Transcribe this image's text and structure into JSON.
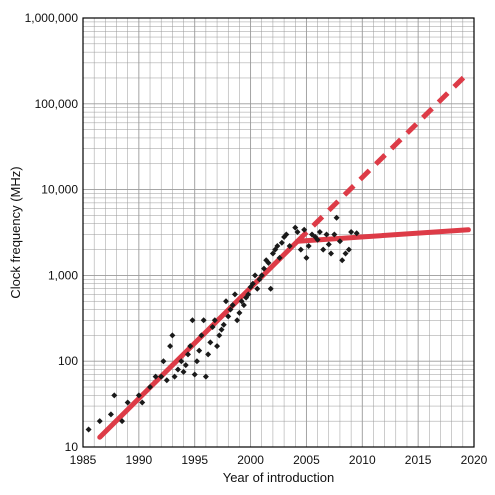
{
  "chart_data": {
    "type": "scatter",
    "xlabel": "Year of introduction",
    "ylabel": "Clock frequency (MHz)",
    "xlim": [
      1985,
      2020
    ],
    "ylim": [
      10,
      1000000
    ],
    "y_scale": "log",
    "grid": true,
    "x_ticks": [
      {
        "value": 1985,
        "label": "1985"
      },
      {
        "value": 1990,
        "label": "1990"
      },
      {
        "value": 1995,
        "label": "1995"
      },
      {
        "value": 2000,
        "label": "2000"
      },
      {
        "value": 2005,
        "label": "2005"
      },
      {
        "value": 2010,
        "label": "2010"
      },
      {
        "value": 2015,
        "label": "2015"
      },
      {
        "value": 2020,
        "label": "2020"
      }
    ],
    "y_ticks": [
      {
        "value": 10,
        "label": "10"
      },
      {
        "value": 100,
        "label": "100"
      },
      {
        "value": 1000,
        "label": "1,000"
      },
      {
        "value": 10000,
        "label": "10,000"
      },
      {
        "value": 100000,
        "label": "100,000"
      },
      {
        "value": 1000000,
        "label": "1,000,000"
      }
    ],
    "points": [
      [
        1985.5,
        16
      ],
      [
        1986.5,
        20
      ],
      [
        1987.5,
        24
      ],
      [
        1987.8,
        40
      ],
      [
        1988.5,
        20
      ],
      [
        1989,
        33
      ],
      [
        1990,
        40
      ],
      [
        1990.3,
        33
      ],
      [
        1991,
        50
      ],
      [
        1991.5,
        66
      ],
      [
        1992,
        66
      ],
      [
        1992.2,
        100
      ],
      [
        1992.5,
        60
      ],
      [
        1992.8,
        150
      ],
      [
        1993,
        200
      ],
      [
        1993.2,
        66
      ],
      [
        1993.5,
        80
      ],
      [
        1993.8,
        100
      ],
      [
        1994,
        75
      ],
      [
        1994.2,
        90
      ],
      [
        1994.4,
        120
      ],
      [
        1994.6,
        150
      ],
      [
        1994.8,
        300
      ],
      [
        1995,
        70
      ],
      [
        1995.2,
        100
      ],
      [
        1995.4,
        133
      ],
      [
        1995.6,
        200
      ],
      [
        1995.8,
        300
      ],
      [
        1996,
        66
      ],
      [
        1996.2,
        120
      ],
      [
        1996.4,
        166
      ],
      [
        1996.6,
        250
      ],
      [
        1996.8,
        300
      ],
      [
        1997,
        150
      ],
      [
        1997.2,
        200
      ],
      [
        1997.4,
        233
      ],
      [
        1997.6,
        266
      ],
      [
        1997.8,
        500
      ],
      [
        1998,
        333
      ],
      [
        1998.2,
        400
      ],
      [
        1998.4,
        450
      ],
      [
        1998.6,
        600
      ],
      [
        1998.8,
        300
      ],
      [
        1999,
        366
      ],
      [
        1999.2,
        500
      ],
      [
        1999.4,
        450
      ],
      [
        1999.6,
        550
      ],
      [
        1999.8,
        600
      ],
      [
        2000,
        733
      ],
      [
        2000.2,
        800
      ],
      [
        2000.4,
        1000
      ],
      [
        2000.6,
        700
      ],
      [
        2000.8,
        900
      ],
      [
        2001,
        1000
      ],
      [
        2001.2,
        1200
      ],
      [
        2001.4,
        1500
      ],
      [
        2001.6,
        1400
      ],
      [
        2001.8,
        700
      ],
      [
        2002,
        1800
      ],
      [
        2002.2,
        2000
      ],
      [
        2002.4,
        2200
      ],
      [
        2002.6,
        1600
      ],
      [
        2002.8,
        2400
      ],
      [
        2003,
        2800
      ],
      [
        2003.2,
        3000
      ],
      [
        2003.5,
        2200
      ],
      [
        2004,
        3600
      ],
      [
        2004.2,
        3200
      ],
      [
        2004.5,
        2000
      ],
      [
        2004.8,
        3400
      ],
      [
        2005,
        1600
      ],
      [
        2005.2,
        2200
      ],
      [
        2005.5,
        3000
      ],
      [
        2005.8,
        2800
      ],
      [
        2006,
        2600
      ],
      [
        2006.2,
        3200
      ],
      [
        2006.5,
        2000
      ],
      [
        2006.8,
        3000
      ],
      [
        2007,
        2300
      ],
      [
        2007.2,
        1800
      ],
      [
        2007.5,
        3000
      ],
      [
        2007.7,
        4700
      ],
      [
        2008,
        2500
      ],
      [
        2008.2,
        1500
      ],
      [
        2008.5,
        1800
      ],
      [
        2008.8,
        2000
      ],
      [
        2009,
        3200
      ],
      [
        2009.5,
        3100
      ]
    ],
    "trend_lines": [
      {
        "style": "solid",
        "color": "#dd3b47",
        "points": [
          [
            1986.5,
            13
          ],
          [
            2004.2,
            2500
          ]
        ]
      },
      {
        "style": "solid",
        "color": "#dd3b47",
        "points": [
          [
            2004.2,
            2500
          ],
          [
            2019.5,
            3400
          ]
        ]
      },
      {
        "style": "dashed",
        "color": "#dd3b47",
        "points": [
          [
            2004.2,
            2500
          ],
          [
            2019.5,
            230000
          ]
        ]
      }
    ],
    "colors": {
      "trend": "#dd3b47",
      "points": "#1a1a1a",
      "grid": "#9a9a9a",
      "axis": "#000000"
    }
  }
}
